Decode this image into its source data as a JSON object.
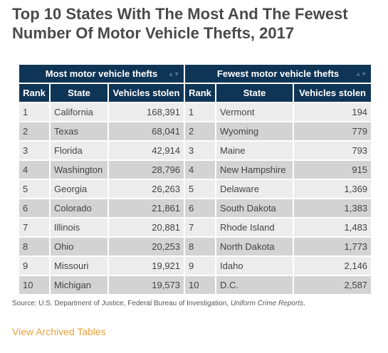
{
  "title": "Top 10 States With The Most And The Fewest Number Of Motor Vehicle Thefts, 2017",
  "groups": {
    "most": "Most motor vehicle thefts",
    "fewest": "Fewest motor vehicle thefts"
  },
  "columns": {
    "rank": "Rank",
    "state": "State",
    "stolen": "Vehicles stolen"
  },
  "rows": [
    {
      "most_rank": "1",
      "most_state": "California",
      "most_stolen": "168,391",
      "few_rank": "1",
      "few_state": "Vermont",
      "few_stolen": "194"
    },
    {
      "most_rank": "2",
      "most_state": "Texas",
      "most_stolen": "68,041",
      "few_rank": "2",
      "few_state": "Wyoming",
      "few_stolen": "779"
    },
    {
      "most_rank": "3",
      "most_state": "Florida",
      "most_stolen": "42,914",
      "few_rank": "3",
      "few_state": "Maine",
      "few_stolen": "793"
    },
    {
      "most_rank": "4",
      "most_state": "Washington",
      "most_stolen": "28,796",
      "few_rank": "4",
      "few_state": "New Hampshire",
      "few_stolen": "915"
    },
    {
      "most_rank": "5",
      "most_state": "Georgia",
      "most_stolen": "26,263",
      "few_rank": "5",
      "few_state": "Delaware",
      "few_stolen": "1,369"
    },
    {
      "most_rank": "6",
      "most_state": "Colorado",
      "most_stolen": "21,861",
      "few_rank": "6",
      "few_state": "South Dakota",
      "few_stolen": "1,383"
    },
    {
      "most_rank": "7",
      "most_state": "Illinois",
      "most_stolen": "20,881",
      "few_rank": "7",
      "few_state": "Rhode Island",
      "few_stolen": "1,483"
    },
    {
      "most_rank": "8",
      "most_state": "Ohio",
      "most_stolen": "20,253",
      "few_rank": "8",
      "few_state": "North Dakota",
      "few_stolen": "1,773"
    },
    {
      "most_rank": "9",
      "most_state": "Missouri",
      "most_stolen": "19,921",
      "few_rank": "9",
      "few_state": "Idaho",
      "few_stolen": "2,146"
    },
    {
      "most_rank": "10",
      "most_state": "Michigan",
      "most_stolen": "19,573",
      "few_rank": "10",
      "few_state": "D.C.",
      "few_stolen": "2,587"
    }
  ],
  "source": {
    "prefix": "Source: U.S. Department of Justice, Federal Bureau of Investigation, ",
    "publication": "Uniform Crime Reports",
    "suffix": "."
  },
  "archived_link": "View Archived Tables",
  "colors": {
    "header_bg": "#0f3556",
    "row_light": "#ececec",
    "row_dark": "#d3d3d3",
    "link": "#e8a33c"
  },
  "icons": {
    "sort": "sort-arrows-icon"
  }
}
